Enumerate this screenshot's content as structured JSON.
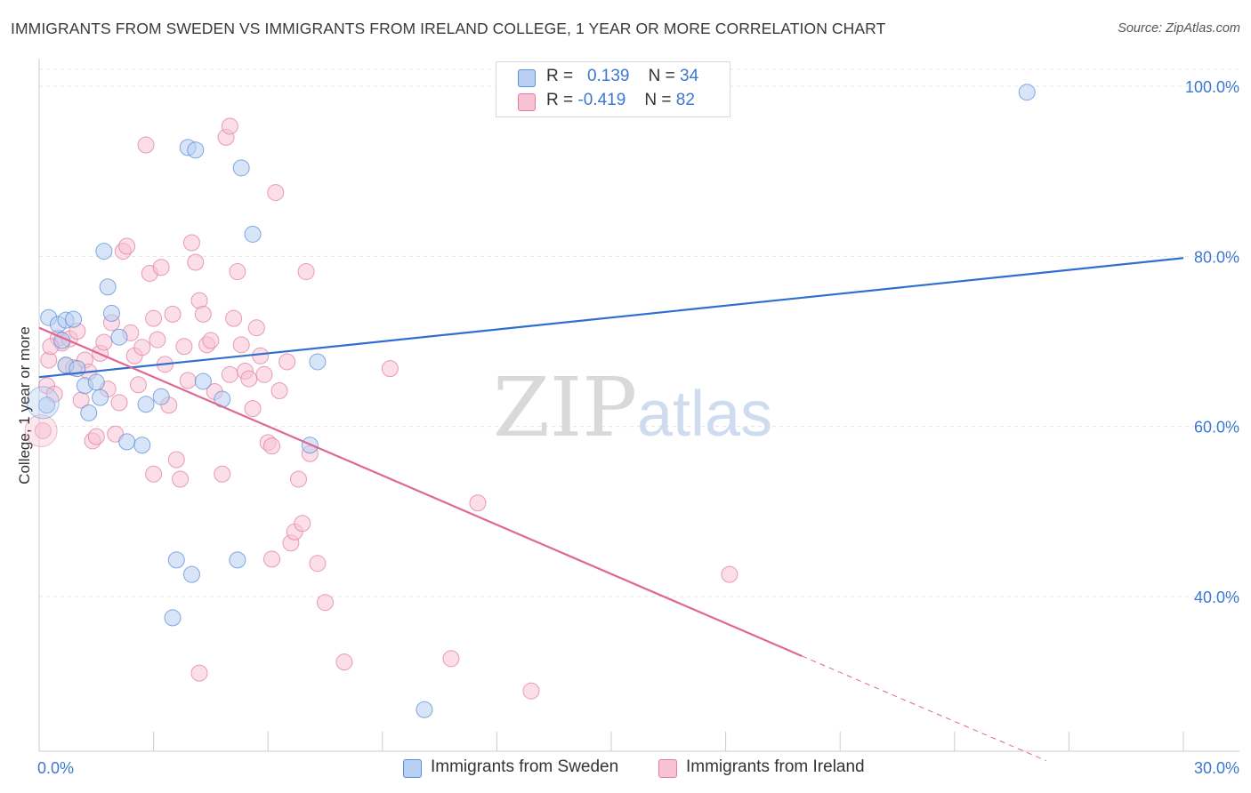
{
  "title": "IMMIGRANTS FROM SWEDEN VS IMMIGRANTS FROM IRELAND COLLEGE, 1 YEAR OR MORE CORRELATION CHART",
  "source": "Source: ZipAtlas.com",
  "colors": {
    "sweden": "#5b8ed6",
    "sweden_fill": "#b8d0f2",
    "ireland": "#e07ea2",
    "ireland_fill": "#f7c2d3",
    "axis_text": "#3b78d0"
  },
  "legend": {
    "sweden": {
      "r_label": "R =",
      "r_value": "0.139",
      "n_label": "N =",
      "n_value": "34"
    },
    "ireland": {
      "r_label": "R =",
      "r_value": "-0.419",
      "n_label": "N =",
      "n_value": "82"
    }
  },
  "bottom_legend": {
    "sweden": "Immigrants from Sweden",
    "ireland": "Immigrants from Ireland"
  },
  "watermark": {
    "zip": "ZIP",
    "atlas": "atlas"
  },
  "chart_data": {
    "type": "scatter",
    "ylabel": "College, 1 year or more",
    "xlim": [
      0,
      30
    ],
    "ylim": [
      20,
      103
    ],
    "x_tick_labels": [
      {
        "value": 0,
        "label": "0.0%"
      },
      {
        "value": 30,
        "label": "30.0%"
      }
    ],
    "y_tick_labels": [
      {
        "value": 100,
        "label": "100.0%"
      },
      {
        "value": 80,
        "label": "80.0%"
      },
      {
        "value": 60,
        "label": "60.0%"
      },
      {
        "value": 40,
        "label": "40.0%"
      }
    ],
    "series": [
      {
        "name": "Immigrants from Sweden",
        "color": "#5b8ed6",
        "points": [
          [
            0.2,
            62.5
          ],
          [
            0.25,
            72.8
          ],
          [
            0.5,
            72.0
          ],
          [
            0.6,
            70.1
          ],
          [
            0.7,
            72.5
          ],
          [
            0.7,
            67.2
          ],
          [
            0.9,
            72.6
          ],
          [
            1.0,
            66.8
          ],
          [
            1.2,
            64.8
          ],
          [
            1.3,
            61.6
          ],
          [
            1.5,
            65.2
          ],
          [
            1.6,
            63.4
          ],
          [
            1.7,
            80.6
          ],
          [
            1.8,
            76.4
          ],
          [
            1.9,
            73.3
          ],
          [
            2.1,
            70.5
          ],
          [
            2.3,
            58.2
          ],
          [
            2.7,
            57.8
          ],
          [
            2.8,
            62.6
          ],
          [
            3.2,
            63.5
          ],
          [
            3.5,
            37.5
          ],
          [
            3.6,
            44.3
          ],
          [
            3.9,
            92.8
          ],
          [
            4.0,
            42.6
          ],
          [
            4.1,
            92.5
          ],
          [
            4.3,
            65.3
          ],
          [
            4.8,
            63.2
          ],
          [
            5.2,
            44.3
          ],
          [
            5.3,
            90.4
          ],
          [
            5.6,
            82.6
          ],
          [
            7.1,
            57.8
          ],
          [
            7.3,
            67.6
          ],
          [
            10.1,
            26.7
          ],
          [
            25.9,
            99.3
          ]
        ]
      },
      {
        "name": "Immigrants from Ireland",
        "color": "#e07ea2",
        "points": [
          [
            0.1,
            59.5
          ],
          [
            0.2,
            64.8
          ],
          [
            0.25,
            67.8
          ],
          [
            0.4,
            63.8
          ],
          [
            0.5,
            70.4
          ],
          [
            0.6,
            69.8
          ],
          [
            0.7,
            67.2
          ],
          [
            0.8,
            70.3
          ],
          [
            0.9,
            66.9
          ],
          [
            1.0,
            71.2
          ],
          [
            1.2,
            67.8
          ],
          [
            1.3,
            66.4
          ],
          [
            1.4,
            58.3
          ],
          [
            1.5,
            58.8
          ],
          [
            1.6,
            68.6
          ],
          [
            1.7,
            69.9
          ],
          [
            1.8,
            64.4
          ],
          [
            1.9,
            72.2
          ],
          [
            2.0,
            59.1
          ],
          [
            2.1,
            62.8
          ],
          [
            2.2,
            80.6
          ],
          [
            2.3,
            81.2
          ],
          [
            2.4,
            71.0
          ],
          [
            2.5,
            68.3
          ],
          [
            2.6,
            64.9
          ],
          [
            2.7,
            69.3
          ],
          [
            2.8,
            93.1
          ],
          [
            2.9,
            78.0
          ],
          [
            3.0,
            72.7
          ],
          [
            3.1,
            70.2
          ],
          [
            3.2,
            78.7
          ],
          [
            3.3,
            67.3
          ],
          [
            3.4,
            62.5
          ],
          [
            3.5,
            73.2
          ],
          [
            3.6,
            56.1
          ],
          [
            3.7,
            53.8
          ],
          [
            3.8,
            69.4
          ],
          [
            3.9,
            65.4
          ],
          [
            4.0,
            81.6
          ],
          [
            4.1,
            79.3
          ],
          [
            4.2,
            74.8
          ],
          [
            4.3,
            73.2
          ],
          [
            4.4,
            69.6
          ],
          [
            4.5,
            70.1
          ],
          [
            4.6,
            64.1
          ],
          [
            4.8,
            54.4
          ],
          [
            4.9,
            94.0
          ],
          [
            5.0,
            95.3
          ],
          [
            5.1,
            72.7
          ],
          [
            5.2,
            78.2
          ],
          [
            5.3,
            69.6
          ],
          [
            5.4,
            66.5
          ],
          [
            5.5,
            65.6
          ],
          [
            5.6,
            62.1
          ],
          [
            5.7,
            71.6
          ],
          [
            5.8,
            68.3
          ],
          [
            5.9,
            66.1
          ],
          [
            6.0,
            58.1
          ],
          [
            6.1,
            57.7
          ],
          [
            6.2,
            87.5
          ],
          [
            6.3,
            64.2
          ],
          [
            6.5,
            67.6
          ],
          [
            6.6,
            46.3
          ],
          [
            6.7,
            47.6
          ],
          [
            6.8,
            53.8
          ],
          [
            7.0,
            78.2
          ],
          [
            7.1,
            56.8
          ],
          [
            7.3,
            43.9
          ],
          [
            7.5,
            39.3
          ],
          [
            8.0,
            32.3
          ],
          [
            9.2,
            66.8
          ],
          [
            10.8,
            32.7
          ],
          [
            11.5,
            51.0
          ],
          [
            12.9,
            28.9
          ],
          [
            18.1,
            42.6
          ],
          [
            0.3,
            69.4
          ],
          [
            1.1,
            63.1
          ],
          [
            3.0,
            54.4
          ],
          [
            4.2,
            31.0
          ],
          [
            5.0,
            66.1
          ],
          [
            6.1,
            44.4
          ],
          [
            6.9,
            48.6
          ]
        ]
      }
    ],
    "trend_lines": [
      {
        "series": "Immigrants from Sweden",
        "x": [
          0,
          30
        ],
        "y": [
          65.8,
          79.8
        ],
        "style": "solid"
      },
      {
        "series": "Immigrants from Ireland",
        "x": [
          0,
          20
        ],
        "y": [
          71.6,
          33.0
        ],
        "style": "solid"
      },
      {
        "series": "Immigrants from Ireland",
        "x": [
          20,
          26.4
        ],
        "y": [
          33.0,
          20.7
        ],
        "style": "dashed"
      }
    ]
  }
}
